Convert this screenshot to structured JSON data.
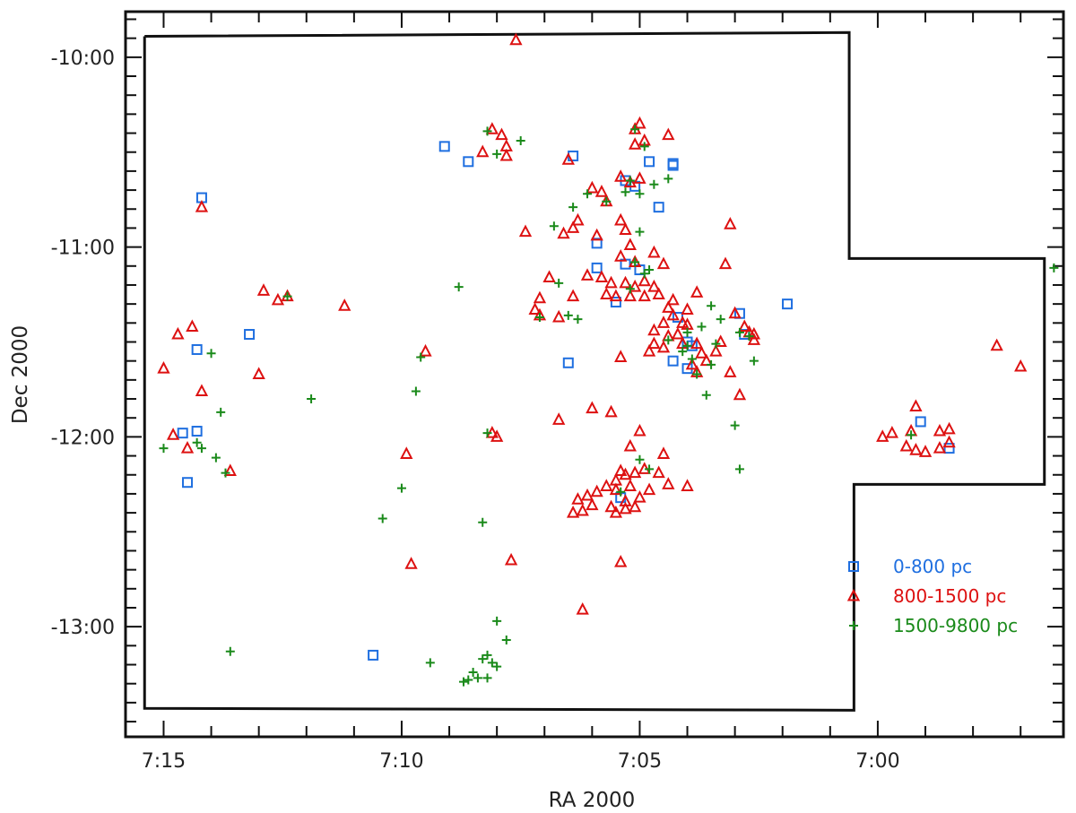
{
  "chart_data": {
    "type": "scatter",
    "title": "",
    "xlabel": "RA 2000",
    "ylabel": "Dec 2000",
    "xlim_minutes": [
      15.8,
      -3.9
    ],
    "ylim_degrees": [
      -13.58,
      -9.76
    ],
    "x_ticks": [
      {
        "value": 15,
        "label": "7:15"
      },
      {
        "value": 10,
        "label": "7:10"
      },
      {
        "value": 5,
        "label": "7:05"
      },
      {
        "value": 0,
        "label": "7:00"
      }
    ],
    "y_ticks": [
      {
        "value": -10,
        "label": "-10:00"
      },
      {
        "value": -11,
        "label": "-11:00"
      },
      {
        "value": -12,
        "label": "-12:00"
      },
      {
        "value": -13,
        "label": "-13:00"
      }
    ],
    "x_units_note": "RA in minutes after 7h",
    "grid": false,
    "legend_position": "lower-right",
    "survey_boundary": [
      [
        15.4,
        -9.89
      ],
      [
        0.6,
        -9.87
      ],
      [
        0.6,
        -11.06
      ],
      [
        -3.5,
        -11.06
      ],
      [
        -3.5,
        -12.25
      ],
      [
        0.5,
        -12.25
      ],
      [
        0.5,
        -13.44
      ],
      [
        15.4,
        -13.43
      ],
      [
        15.4,
        -9.89
      ]
    ],
    "series": [
      {
        "name": "0-800 pc",
        "marker": "square",
        "color": "#1f6fe0",
        "points": [
          [
            14.2,
            -10.74
          ],
          [
            9.1,
            -10.47
          ],
          [
            8.6,
            -10.55
          ],
          [
            6.4,
            -10.52
          ],
          [
            5.3,
            -10.65
          ],
          [
            5.1,
            -10.68
          ],
          [
            4.8,
            -10.55
          ],
          [
            4.3,
            -10.56
          ],
          [
            4.3,
            -10.57
          ],
          [
            4.6,
            -10.79
          ],
          [
            5.9,
            -10.98
          ],
          [
            5.9,
            -11.11
          ],
          [
            5.3,
            -11.09
          ],
          [
            5.0,
            -11.12
          ],
          [
            5.5,
            -11.29
          ],
          [
            6.5,
            -11.61
          ],
          [
            4.2,
            -11.37
          ],
          [
            4.0,
            -11.5
          ],
          [
            3.9,
            -11.52
          ],
          [
            4.3,
            -11.6
          ],
          [
            4.0,
            -11.64
          ],
          [
            2.9,
            -11.35
          ],
          [
            1.9,
            -11.3
          ],
          [
            2.8,
            -11.46
          ],
          [
            14.3,
            -11.54
          ],
          [
            13.2,
            -11.46
          ],
          [
            14.6,
            -11.98
          ],
          [
            14.3,
            -11.97
          ],
          [
            14.5,
            -12.24
          ],
          [
            10.6,
            -13.15
          ],
          [
            5.4,
            -12.32
          ],
          [
            -0.9,
            -11.92
          ],
          [
            -1.5,
            -12.06
          ]
        ]
      },
      {
        "name": "800-1500 pc",
        "marker": "triangle",
        "color": "#dd1111",
        "points": [
          [
            7.6,
            -9.91
          ],
          [
            14.2,
            -10.79
          ],
          [
            12.9,
            -11.23
          ],
          [
            12.6,
            -11.28
          ],
          [
            12.4,
            -11.26
          ],
          [
            11.2,
            -11.31
          ],
          [
            14.7,
            -11.46
          ],
          [
            14.4,
            -11.42
          ],
          [
            13.0,
            -11.67
          ],
          [
            14.2,
            -11.76
          ],
          [
            15.0,
            -11.64
          ],
          [
            14.5,
            -12.06
          ],
          [
            14.8,
            -11.99
          ],
          [
            13.6,
            -12.18
          ],
          [
            9.5,
            -11.55
          ],
          [
            8.1,
            -10.38
          ],
          [
            7.9,
            -10.41
          ],
          [
            7.8,
            -10.47
          ],
          [
            8.3,
            -10.5
          ],
          [
            7.8,
            -10.52
          ],
          [
            6.5,
            -10.54
          ],
          [
            6.0,
            -10.69
          ],
          [
            5.8,
            -10.71
          ],
          [
            6.6,
            -10.93
          ],
          [
            6.4,
            -10.9
          ],
          [
            6.3,
            -10.86
          ],
          [
            5.1,
            -10.38
          ],
          [
            5.1,
            -10.46
          ],
          [
            5.0,
            -10.35
          ],
          [
            4.9,
            -10.44
          ],
          [
            4.4,
            -10.41
          ],
          [
            5.4,
            -10.63
          ],
          [
            5.2,
            -10.66
          ],
          [
            5.0,
            -10.64
          ],
          [
            5.7,
            -10.76
          ],
          [
            5.4,
            -10.86
          ],
          [
            5.3,
            -10.91
          ],
          [
            5.2,
            -10.99
          ],
          [
            5.4,
            -11.05
          ],
          [
            5.1,
            -11.08
          ],
          [
            4.7,
            -11.03
          ],
          [
            4.5,
            -11.09
          ],
          [
            5.8,
            -11.16
          ],
          [
            5.6,
            -11.19
          ],
          [
            5.3,
            -11.19
          ],
          [
            5.1,
            -11.21
          ],
          [
            4.9,
            -11.18
          ],
          [
            4.7,
            -11.21
          ],
          [
            4.6,
            -11.25
          ],
          [
            5.5,
            -11.26
          ],
          [
            5.2,
            -11.26
          ],
          [
            4.9,
            -11.26
          ],
          [
            5.7,
            -11.25
          ],
          [
            6.1,
            -11.15
          ],
          [
            6.9,
            -11.16
          ],
          [
            7.1,
            -11.27
          ],
          [
            7.2,
            -11.33
          ],
          [
            7.1,
            -11.36
          ],
          [
            6.7,
            -11.37
          ],
          [
            6.4,
            -11.26
          ],
          [
            5.9,
            -10.94
          ],
          [
            7.4,
            -10.92
          ],
          [
            4.4,
            -11.32
          ],
          [
            4.3,
            -11.28
          ],
          [
            4.0,
            -11.33
          ],
          [
            4.3,
            -11.36
          ],
          [
            4.1,
            -11.4
          ],
          [
            4.0,
            -11.41
          ],
          [
            3.8,
            -11.24
          ],
          [
            3.2,
            -11.09
          ],
          [
            3.1,
            -10.88
          ],
          [
            4.5,
            -11.4
          ],
          [
            4.7,
            -11.44
          ],
          [
            4.4,
            -11.47
          ],
          [
            4.2,
            -11.46
          ],
          [
            4.7,
            -11.51
          ],
          [
            4.8,
            -11.55
          ],
          [
            4.5,
            -11.53
          ],
          [
            4.1,
            -11.51
          ],
          [
            3.8,
            -11.51
          ],
          [
            3.7,
            -11.56
          ],
          [
            3.9,
            -11.62
          ],
          [
            3.6,
            -11.6
          ],
          [
            3.3,
            -11.5
          ],
          [
            2.8,
            -11.42
          ],
          [
            2.6,
            -11.46
          ],
          [
            2.6,
            -11.49
          ],
          [
            2.9,
            -11.78
          ],
          [
            3.8,
            -11.66
          ],
          [
            5.4,
            -11.58
          ],
          [
            6.0,
            -11.85
          ],
          [
            5.6,
            -11.87
          ],
          [
            6.7,
            -11.91
          ],
          [
            5.2,
            -12.05
          ],
          [
            4.0,
            -12.26
          ],
          [
            4.4,
            -12.25
          ],
          [
            4.6,
            -12.19
          ],
          [
            4.9,
            -12.17
          ],
          [
            5.1,
            -12.19
          ],
          [
            5.4,
            -12.18
          ],
          [
            5.3,
            -12.2
          ],
          [
            5.2,
            -12.26
          ],
          [
            5.5,
            -12.23
          ],
          [
            5.5,
            -12.28
          ],
          [
            5.7,
            -12.26
          ],
          [
            5.9,
            -12.29
          ],
          [
            6.1,
            -12.31
          ],
          [
            6.3,
            -12.33
          ],
          [
            6.0,
            -12.36
          ],
          [
            6.4,
            -12.4
          ],
          [
            6.2,
            -12.39
          ],
          [
            5.6,
            -12.37
          ],
          [
            5.3,
            -12.34
          ],
          [
            5.0,
            -12.32
          ],
          [
            4.8,
            -12.28
          ],
          [
            5.5,
            -12.4
          ],
          [
            5.3,
            -12.38
          ],
          [
            5.1,
            -12.37
          ],
          [
            7.7,
            -12.65
          ],
          [
            9.9,
            -12.09
          ],
          [
            9.8,
            -12.67
          ],
          [
            5.4,
            -12.66
          ],
          [
            6.2,
            -12.91
          ],
          [
            8.1,
            -11.98
          ],
          [
            8.0,
            -12.0
          ],
          [
            3.1,
            -11.66
          ],
          [
            4.5,
            -12.09
          ],
          [
            5.0,
            -11.97
          ],
          [
            -0.8,
            -11.84
          ],
          [
            -0.7,
            -11.97
          ],
          [
            -0.6,
            -12.05
          ],
          [
            -0.8,
            -12.07
          ],
          [
            -1.0,
            -12.08
          ],
          [
            -1.3,
            -12.06
          ],
          [
            -1.5,
            -12.03
          ],
          [
            -1.3,
            -11.97
          ],
          [
            -0.3,
            -11.98
          ],
          [
            -0.1,
            -12.0
          ],
          [
            -1.5,
            -11.96
          ],
          [
            -2.5,
            -11.52
          ],
          [
            -3.0,
            -11.63
          ],
          [
            3.4,
            -11.55
          ],
          [
            2.7,
            -11.45
          ],
          [
            3.0,
            -11.35
          ]
        ]
      },
      {
        "name": "1500-9800 pc",
        "marker": "plus",
        "color": "#1a8a1a",
        "points": [
          [
            7.5,
            -10.44
          ],
          [
            8.2,
            -10.39
          ],
          [
            8.0,
            -10.51
          ],
          [
            5.1,
            -10.38
          ],
          [
            4.9,
            -10.47
          ],
          [
            4.7,
            -10.67
          ],
          [
            5.3,
            -10.71
          ],
          [
            5.2,
            -10.65
          ],
          [
            4.4,
            -10.64
          ],
          [
            5.0,
            -10.72
          ],
          [
            6.1,
            -10.72
          ],
          [
            6.4,
            -10.79
          ],
          [
            5.0,
            -10.92
          ],
          [
            5.7,
            -10.76
          ],
          [
            6.8,
            -10.89
          ],
          [
            5.1,
            -11.08
          ],
          [
            4.9,
            -11.14
          ],
          [
            4.8,
            -11.12
          ],
          [
            5.2,
            -11.22
          ],
          [
            6.7,
            -11.19
          ],
          [
            7.1,
            -11.37
          ],
          [
            6.5,
            -11.36
          ],
          [
            6.3,
            -11.38
          ],
          [
            8.8,
            -11.21
          ],
          [
            4.4,
            -11.49
          ],
          [
            4.0,
            -11.52
          ],
          [
            3.9,
            -11.59
          ],
          [
            4.1,
            -11.55
          ],
          [
            3.8,
            -11.67
          ],
          [
            3.5,
            -11.62
          ],
          [
            3.4,
            -11.51
          ],
          [
            3.3,
            -11.38
          ],
          [
            3.5,
            -11.31
          ],
          [
            4.0,
            -11.45
          ],
          [
            3.7,
            -11.42
          ],
          [
            3.6,
            -11.78
          ],
          [
            3.0,
            -11.94
          ],
          [
            2.9,
            -11.45
          ],
          [
            2.7,
            -11.47
          ],
          [
            2.6,
            -11.6
          ],
          [
            12.4,
            -11.26
          ],
          [
            14.0,
            -11.56
          ],
          [
            14.2,
            -12.06
          ],
          [
            14.3,
            -12.03
          ],
          [
            15.0,
            -12.06
          ],
          [
            13.8,
            -11.87
          ],
          [
            13.9,
            -12.11
          ],
          [
            13.7,
            -12.19
          ],
          [
            11.9,
            -11.8
          ],
          [
            9.6,
            -11.58
          ],
          [
            9.7,
            -11.76
          ],
          [
            10.0,
            -12.27
          ],
          [
            10.4,
            -12.43
          ],
          [
            8.2,
            -11.98
          ],
          [
            8.3,
            -12.45
          ],
          [
            5.4,
            -12.29
          ],
          [
            5.0,
            -12.12
          ],
          [
            4.8,
            -12.17
          ],
          [
            2.9,
            -12.17
          ],
          [
            13.6,
            -13.13
          ],
          [
            8.3,
            -13.17
          ],
          [
            8.2,
            -13.15
          ],
          [
            8.1,
            -13.19
          ],
          [
            8.0,
            -13.21
          ],
          [
            7.8,
            -13.07
          ],
          [
            8.5,
            -13.24
          ],
          [
            8.4,
            -13.27
          ],
          [
            8.2,
            -13.27
          ],
          [
            8.6,
            -13.28
          ],
          [
            8.7,
            -13.29
          ],
          [
            9.4,
            -13.19
          ],
          [
            8.0,
            -12.97
          ],
          [
            -0.7,
            -11.99
          ],
          [
            -3.7,
            -11.11
          ]
        ]
      }
    ]
  }
}
